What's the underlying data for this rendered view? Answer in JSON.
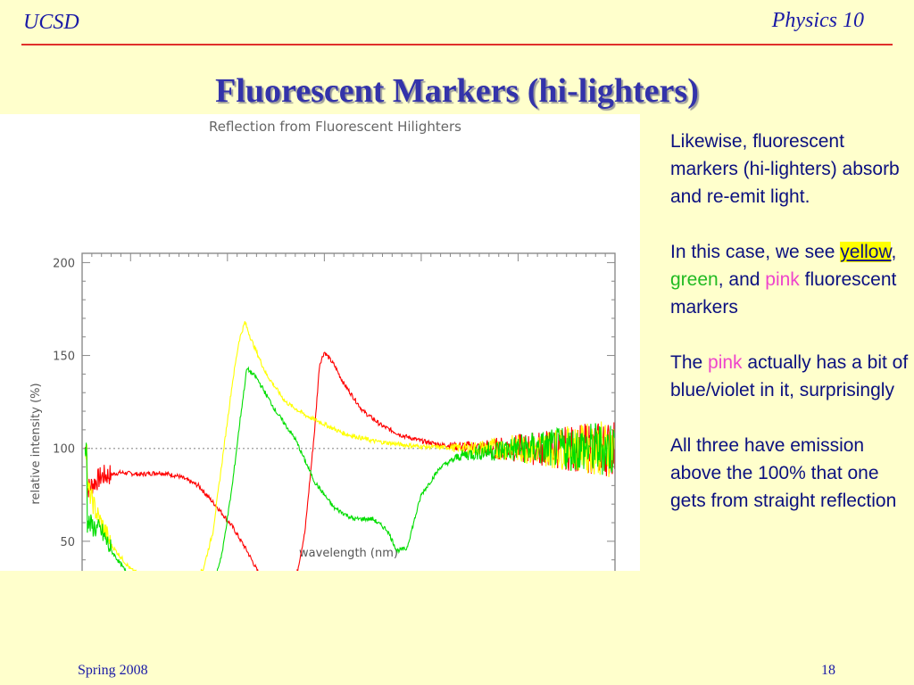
{
  "header": {
    "left": "UCSD",
    "right": "Physics 10"
  },
  "title": "Fluorescent Markers (hi-lighters)",
  "chart_data": {
    "type": "line",
    "title": "Reflection from Fluorescent Hilighters",
    "xlabel": "wavelength (nm)",
    "ylabel": "relative intensity (%)",
    "xlim": [
      350,
      900
    ],
    "ylim": [
      0,
      205
    ],
    "x_ticks": [
      400,
      500,
      600,
      700,
      800,
      900
    ],
    "y_ticks": [
      0,
      50,
      100,
      150,
      200
    ],
    "reference_line": 100,
    "grid": false,
    "series": [
      {
        "color": "#ff0000",
        "points": [
          [
            355,
            78
          ],
          [
            370,
            85
          ],
          [
            390,
            87
          ],
          [
            410,
            86
          ],
          [
            430,
            87
          ],
          [
            450,
            85
          ],
          [
            470,
            80
          ],
          [
            490,
            68
          ],
          [
            505,
            58
          ],
          [
            520,
            45
          ],
          [
            535,
            30
          ],
          [
            545,
            22
          ],
          [
            555,
            20
          ],
          [
            570,
            28
          ],
          [
            580,
            55
          ],
          [
            590,
            110
          ],
          [
            595,
            145
          ],
          [
            600,
            152
          ],
          [
            610,
            145
          ],
          [
            620,
            135
          ],
          [
            640,
            120
          ],
          [
            660,
            112
          ],
          [
            680,
            107
          ],
          [
            700,
            104
          ],
          [
            720,
            102
          ],
          [
            740,
            101
          ],
          [
            760,
            100
          ],
          [
            800,
            100
          ],
          [
            850,
            100
          ],
          [
            900,
            100
          ]
        ]
      },
      {
        "color": "#ffff00",
        "points": [
          [
            355,
            80
          ],
          [
            365,
            65
          ],
          [
            380,
            48
          ],
          [
            400,
            35
          ],
          [
            420,
            28
          ],
          [
            440,
            25
          ],
          [
            460,
            27
          ],
          [
            475,
            35
          ],
          [
            485,
            55
          ],
          [
            495,
            95
          ],
          [
            505,
            135
          ],
          [
            512,
            158
          ],
          [
            518,
            168
          ],
          [
            525,
            158
          ],
          [
            540,
            140
          ],
          [
            560,
            125
          ],
          [
            580,
            118
          ],
          [
            600,
            113
          ],
          [
            620,
            108
          ],
          [
            650,
            104
          ],
          [
            680,
            102
          ],
          [
            700,
            101
          ],
          [
            750,
            100
          ],
          [
            800,
            100
          ],
          [
            850,
            100
          ],
          [
            900,
            100
          ]
        ]
      },
      {
        "color": "#00dd00",
        "points": [
          [
            355,
            60
          ],
          [
            370,
            55
          ],
          [
            380,
            45
          ],
          [
            400,
            30
          ],
          [
            420,
            20
          ],
          [
            440,
            16
          ],
          [
            460,
            14
          ],
          [
            475,
            17
          ],
          [
            485,
            25
          ],
          [
            495,
            45
          ],
          [
            505,
            80
          ],
          [
            513,
            115
          ],
          [
            520,
            143
          ],
          [
            530,
            138
          ],
          [
            550,
            120
          ],
          [
            570,
            105
          ],
          [
            590,
            82
          ],
          [
            610,
            68
          ],
          [
            630,
            62
          ],
          [
            650,
            62
          ],
          [
            665,
            56
          ],
          [
            675,
            45
          ],
          [
            685,
            46
          ],
          [
            700,
            75
          ],
          [
            720,
            90
          ],
          [
            740,
            96
          ],
          [
            760,
            98
          ],
          [
            800,
            100
          ],
          [
            850,
            100
          ],
          [
            900,
            100
          ]
        ]
      }
    ]
  },
  "side_text": {
    "p1": "Likewise, fluorescent markers (hi-lighters) absorb and re-emit light.",
    "p2_before": "In this case, we see ",
    "p2_yellow": "yellow",
    "p2_comma": ", ",
    "p2_green": "green",
    "p2_and": ", and ",
    "p2_pink": "pink",
    "p2_after": " fluorescent markers",
    "p3_before": "The ",
    "p3_pink": "pink",
    "p3_after": " actually has a bit of blue/violet in it, surprisingly",
    "p4": "All three have emission above the 100% that one gets from straight reflection"
  },
  "footer": {
    "left": "Spring 2008",
    "right": "18"
  }
}
